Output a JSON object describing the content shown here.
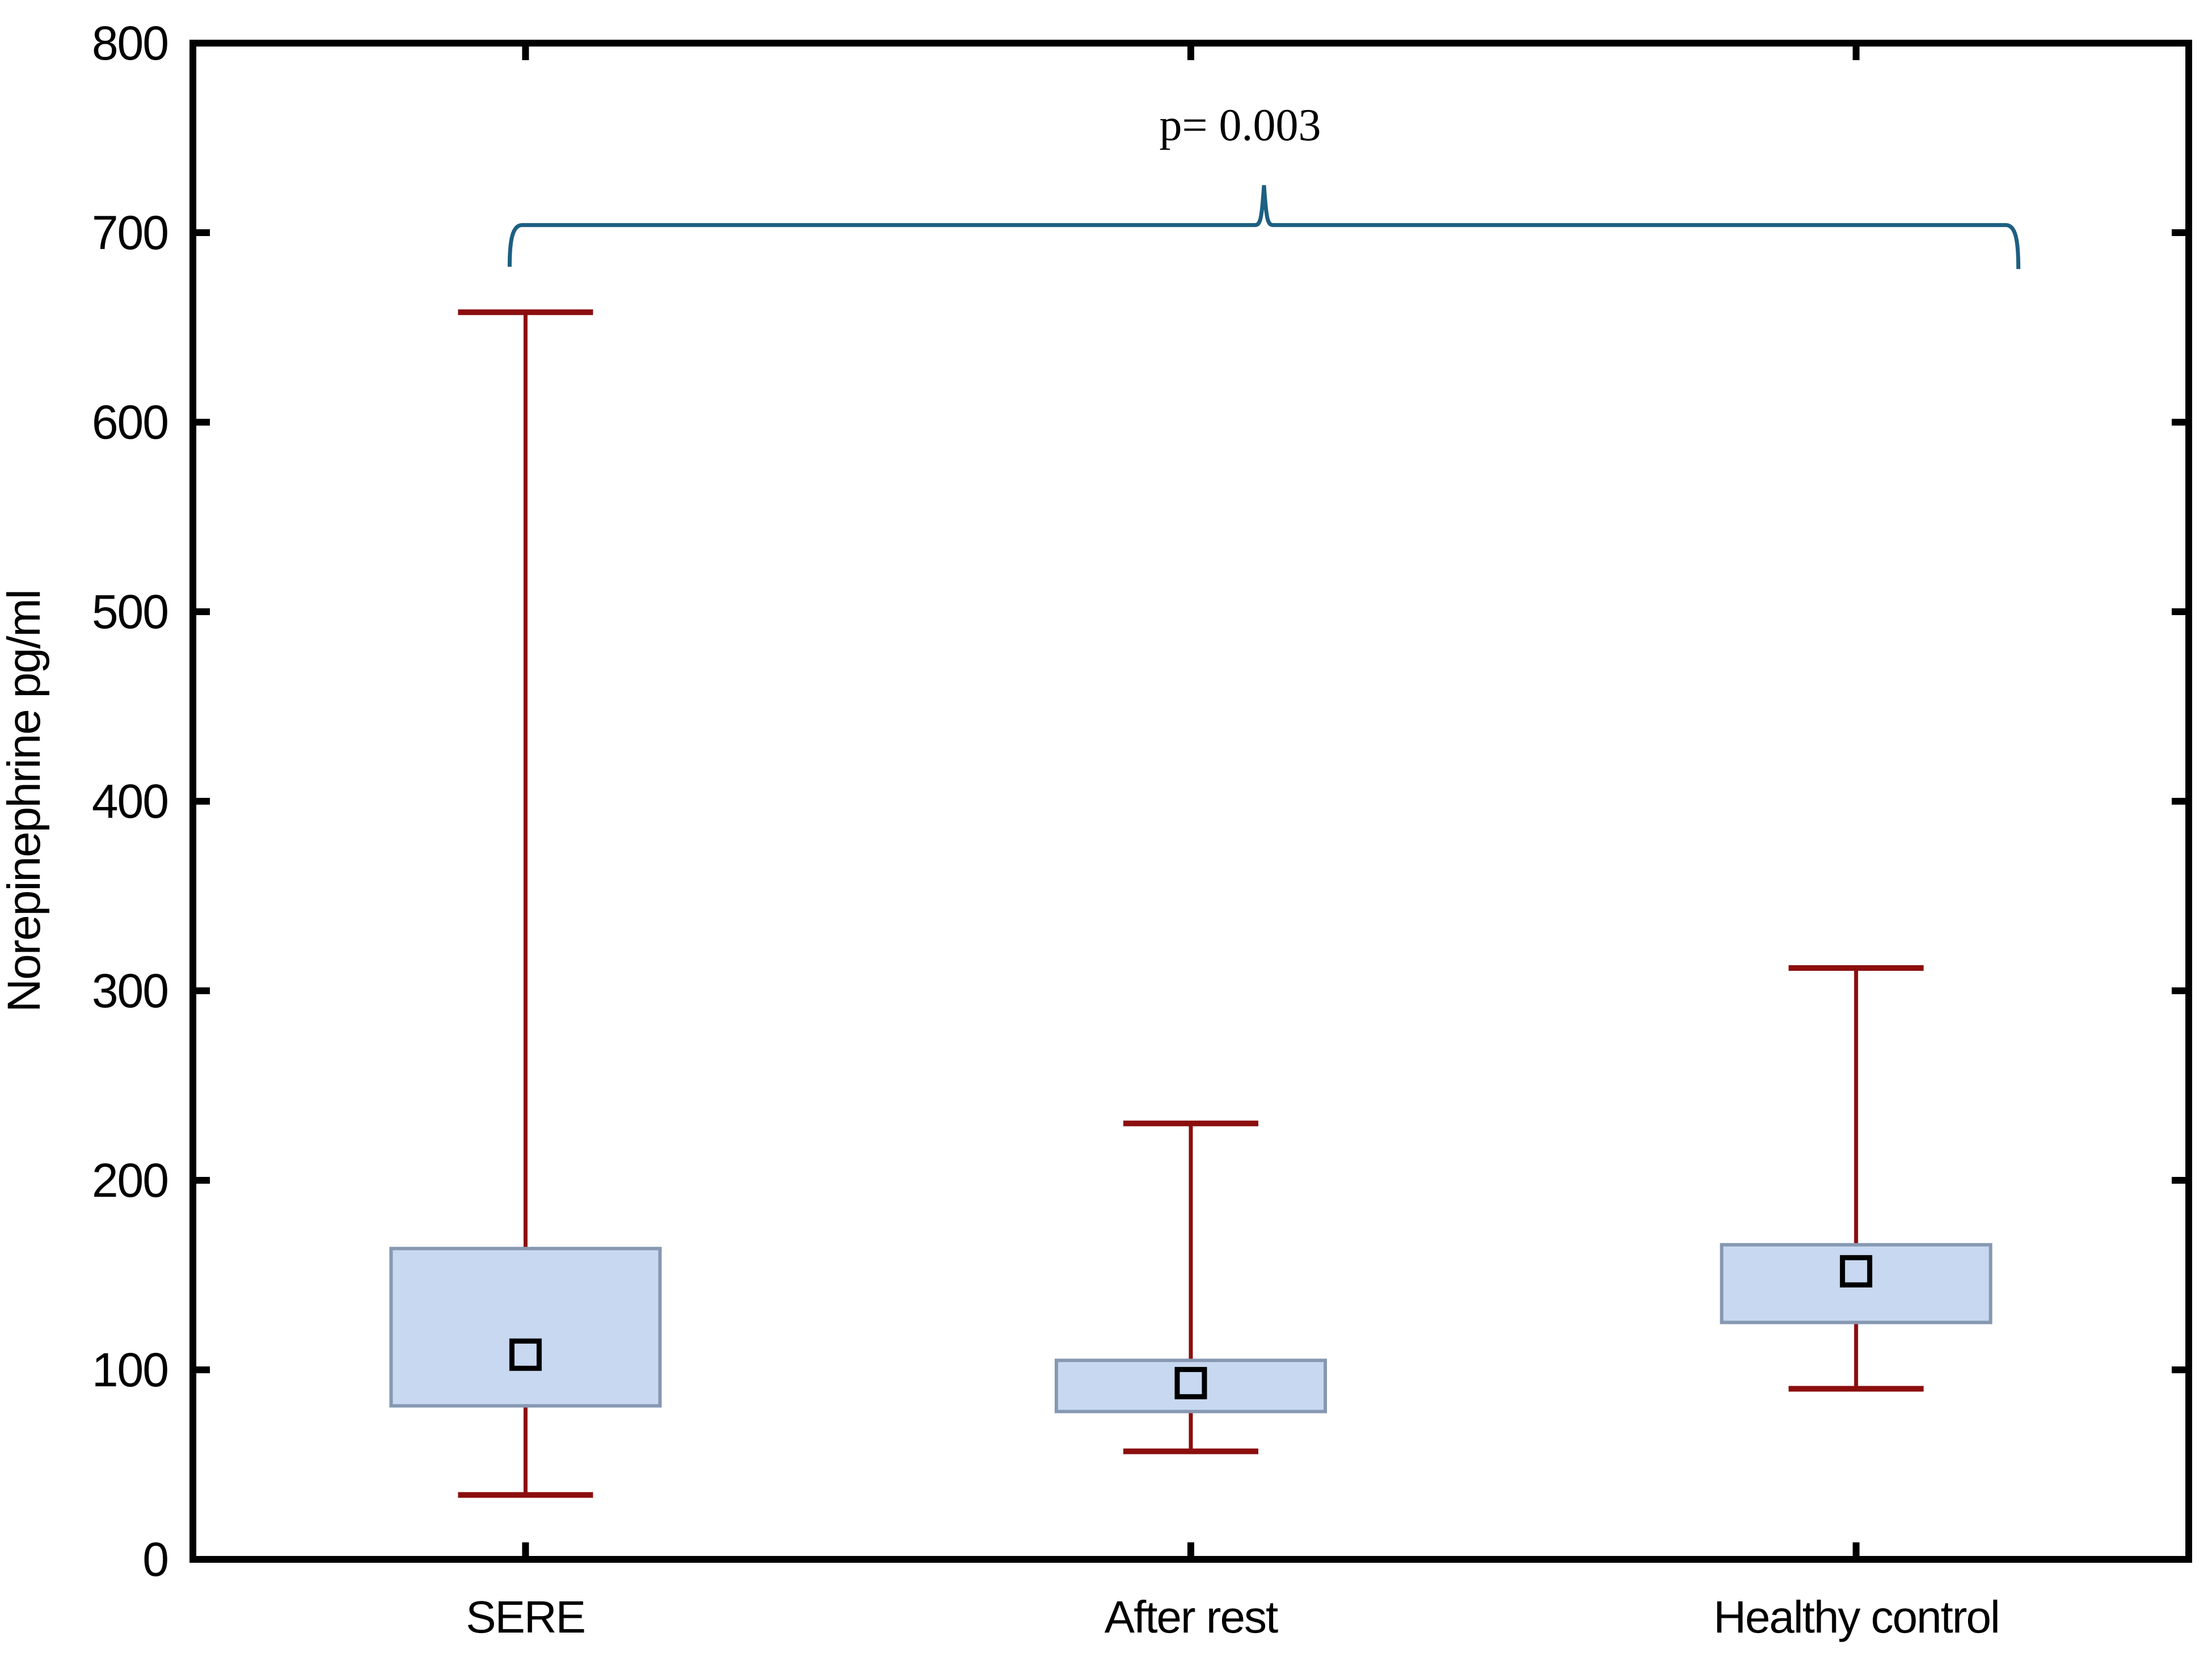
{
  "chart_data": {
    "type": "box",
    "title": "",
    "ylabel": "Norepinephrine pg/ml",
    "xlabel": "",
    "ylim": [
      0,
      800
    ],
    "yticks": [
      0,
      100,
      200,
      300,
      400,
      500,
      600,
      700,
      800
    ],
    "grid": false,
    "legend_visible": false,
    "categories": [
      "SERE",
      "After rest",
      "Healthy control"
    ],
    "series": [
      {
        "name": "SERE",
        "whisker_low": 34,
        "box_low": 81,
        "mean": 108,
        "box_high": 164,
        "whisker_high": 658
      },
      {
        "name": "After rest",
        "whisker_low": 57,
        "box_low": 78,
        "mean": 93,
        "box_high": 105,
        "whisker_high": 230
      },
      {
        "name": "Healthy control",
        "whisker_low": 90,
        "box_low": 125,
        "mean": 152,
        "box_high": 166,
        "whisker_high": 312
      }
    ],
    "marker": "open-square-mean",
    "annotation": {
      "label": "p= 0.003",
      "from": "SERE",
      "to": "Healthy control",
      "bracket_y": 704,
      "bracket_peak_y": 725,
      "bracket_tail_y": 682
    },
    "colors": {
      "background": "#FFFFFF",
      "axis": "#000000",
      "box_fill": "#C7D8F0",
      "box_border": "#8698B2",
      "whisker": "#8B0E0E",
      "bracket": "#1D5F82",
      "mean_marker": "#000000"
    }
  }
}
